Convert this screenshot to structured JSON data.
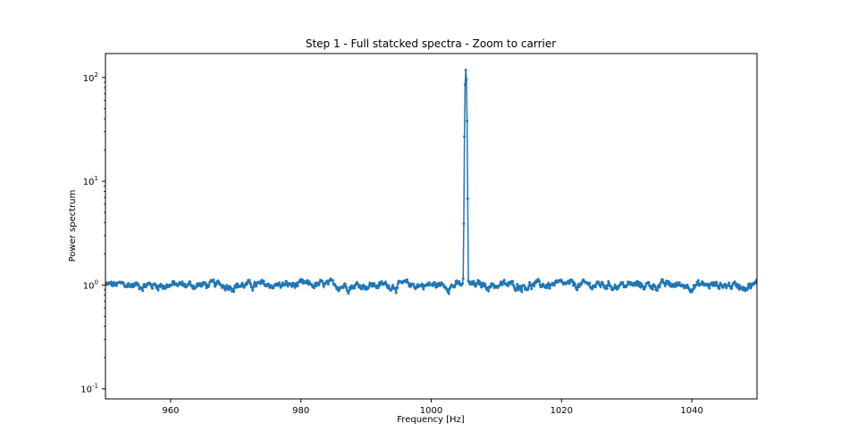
{
  "chart_data": {
    "type": "line",
    "title": "Step 1 - Full statcked spectra - Zoom to carrier",
    "xlabel": "Frequency [Hz]",
    "ylabel": "Power spectrum",
    "xlim": [
      950,
      1050
    ],
    "ylim": [
      0.08,
      170
    ],
    "yscale": "log",
    "grid": false,
    "line_color": "#1f77b4",
    "marker": "dot",
    "x_ticks": [
      960,
      980,
      1000,
      1020,
      1040
    ],
    "x_tick_labels": [
      "960",
      "980",
      "1000",
      "1020",
      "1040"
    ],
    "y_ticks": [
      0.1,
      1,
      10,
      100
    ],
    "y_tick_labels": [
      "10^-1",
      "10^0",
      "10^1",
      "10^2"
    ],
    "noise": {
      "x_start": 950,
      "x_end": 1050,
      "step": 0.1,
      "mean": 1.0,
      "range": [
        0.78,
        1.22
      ]
    },
    "peak": [
      {
        "x": 1004.9,
        "y": 1.15
      },
      {
        "x": 1005.0,
        "y": 3.9
      },
      {
        "x": 1005.1,
        "y": 27.0
      },
      {
        "x": 1005.2,
        "y": 85.0
      },
      {
        "x": 1005.3,
        "y": 118.0
      },
      {
        "x": 1005.4,
        "y": 95.0
      },
      {
        "x": 1005.5,
        "y": 38.0
      },
      {
        "x": 1005.6,
        "y": 6.8
      },
      {
        "x": 1005.7,
        "y": 1.1
      }
    ]
  }
}
